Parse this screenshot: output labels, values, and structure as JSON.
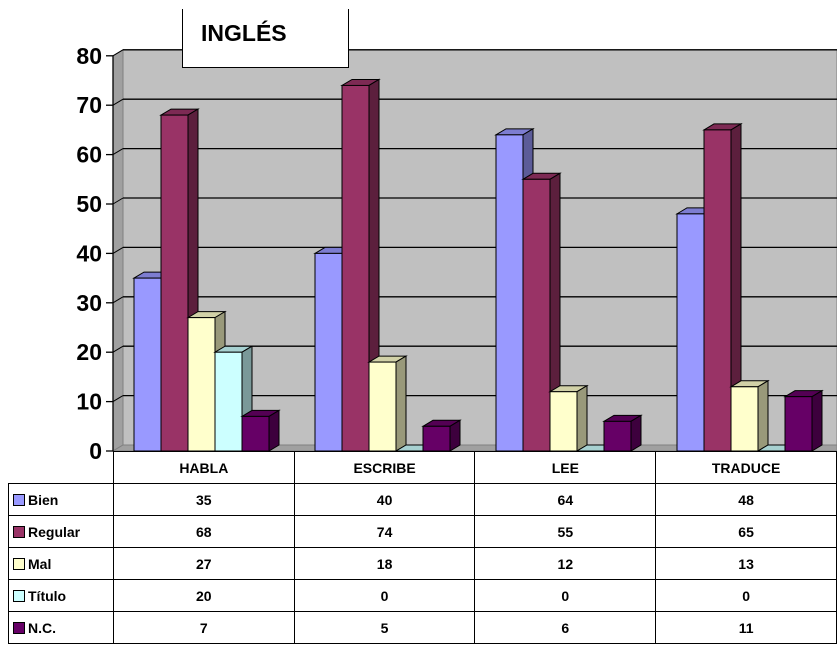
{
  "chart_data": {
    "type": "bar",
    "title": "INGLÉS",
    "categories": [
      "HABLA",
      "ESCRIBE",
      "LEE",
      "TRADUCE"
    ],
    "yticks": [
      "0",
      "10",
      "20",
      "30",
      "40",
      "50",
      "60",
      "70",
      "80"
    ],
    "ylim": [
      0,
      80
    ],
    "grid": true,
    "legend": "data-table",
    "series": [
      {
        "name": "Bien",
        "color": "#9999ff",
        "values": [
          35,
          40,
          64,
          48
        ],
        "labels": [
          "35",
          "40",
          "64",
          "48"
        ]
      },
      {
        "name": "Regular",
        "color": "#993366",
        "values": [
          68,
          74,
          55,
          65
        ],
        "labels": [
          "68",
          "74",
          "55",
          "65"
        ]
      },
      {
        "name": "Mal",
        "color": "#ffffcc",
        "values": [
          27,
          18,
          12,
          13
        ],
        "labels": [
          "27",
          "18",
          "12",
          "13"
        ]
      },
      {
        "name": "Título",
        "color": "#ccffff",
        "values": [
          20,
          0,
          0,
          0
        ],
        "labels": [
          "20",
          "0",
          "0",
          "0"
        ]
      },
      {
        "name": "N.C.",
        "color": "#660066",
        "values": [
          7,
          5,
          6,
          11
        ],
        "labels": [
          "7",
          "5",
          "6",
          "11"
        ]
      }
    ]
  }
}
